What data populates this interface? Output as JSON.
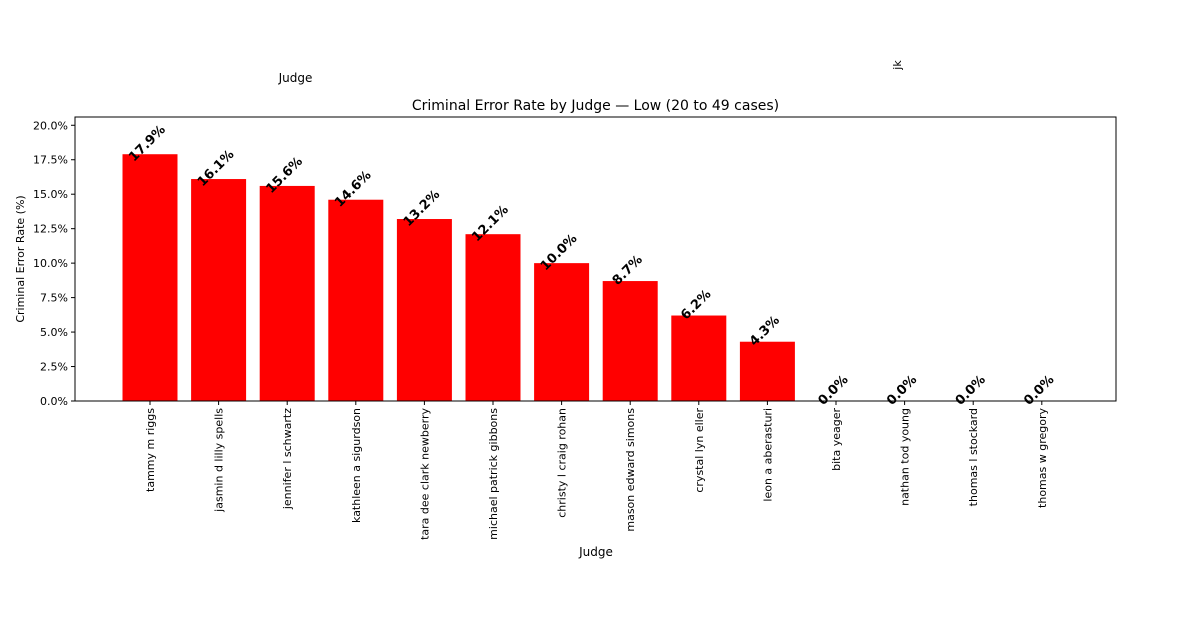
{
  "chart_data": {
    "type": "bar",
    "title": "Criminal Error Rate by Judge — Low (20 to 49 cases)",
    "xlabel": "Judge",
    "ylabel": "Criminal Error Rate (%)",
    "top_axis_label": "Judge",
    "top_axis_stray_tick": "jk",
    "ylim": [
      0,
      20.6
    ],
    "yticks": [
      0,
      2.5,
      5.0,
      7.5,
      10.0,
      12.5,
      15.0,
      17.5,
      20.0
    ],
    "ytick_labels": [
      "0.0%",
      "2.5%",
      "5.0%",
      "7.5%",
      "10.0%",
      "12.5%",
      "15.0%",
      "17.5%",
      "20.0%"
    ],
    "bar_color": "#ff0000",
    "grid": false,
    "categories": [
      "tammy m riggs",
      "jasmin d lilly spells",
      "jennifer l schwartz",
      "kathleen a sigurdson",
      "tara dee clark newberry",
      "michael patrick gibbons",
      "christy l craig rohan",
      "mason edward simons",
      "crystal lyn eller",
      "leon a aberasturi",
      "bita yeager",
      "nathan tod young",
      "thomas l stockard",
      "thomas w gregory"
    ],
    "values": [
      17.9,
      16.1,
      15.6,
      14.6,
      13.2,
      12.1,
      10.0,
      8.7,
      6.2,
      4.3,
      0.0,
      0.0,
      0.0,
      0.0
    ],
    "value_labels": [
      "17.9%",
      "16.1%",
      "15.6%",
      "14.6%",
      "13.2%",
      "12.1%",
      "10.0%",
      "8.7%",
      "6.2%",
      "4.3%",
      "0.0%",
      "0.0%",
      "0.0%",
      "0.0%"
    ]
  }
}
